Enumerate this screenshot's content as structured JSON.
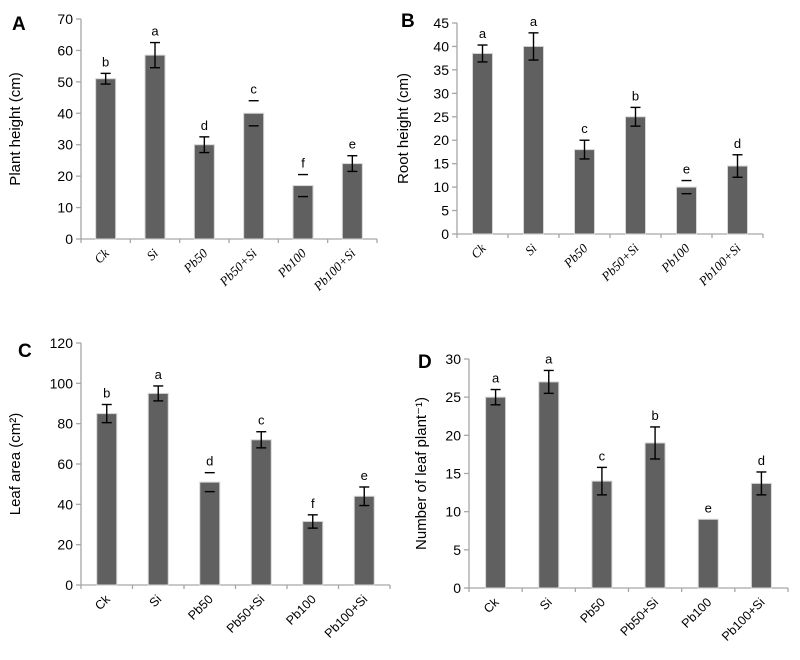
{
  "figure_title": "",
  "colors": {
    "bar_fill": "#606060",
    "bar_border": "#d6d6d6",
    "axis_line": "#a6a6a6",
    "error_bar": "#000000",
    "text": "#000000",
    "background": "#ffffff"
  },
  "chart_data": [
    {
      "type": "bar",
      "panel": "A",
      "title": "",
      "xlabel": "",
      "ylabel": "Plant height (cm)",
      "ylim": [
        0,
        70
      ],
      "ytick_step": 10,
      "grid": false,
      "legend": "none",
      "categories": [
        "Ck",
        "Si",
        "Pb50",
        "Pb50+Si",
        "Pb100",
        "Pb100+Si"
      ],
      "values": [
        51,
        58.5,
        30,
        40,
        17,
        24
      ],
      "errors": [
        1.7,
        4,
        2.5,
        4,
        3.5,
        2.5
      ],
      "sig_letters": [
        "b",
        "a",
        "d",
        "c",
        "f",
        "e"
      ],
      "error_styles": [
        "T",
        "T",
        "T",
        "caps",
        "caps",
        "T"
      ]
    },
    {
      "type": "bar",
      "panel": "B",
      "title": "",
      "xlabel": "",
      "ylabel": "Root height (cm)",
      "ylim": [
        0,
        45
      ],
      "ytick_step": 5,
      "grid": false,
      "legend": "none",
      "categories": [
        "Ck",
        "Si",
        "Pb50",
        "Pb50+Si",
        "Pb100",
        "Pb100+Si"
      ],
      "values": [
        38.5,
        40,
        18,
        25,
        10,
        14.5
      ],
      "errors": [
        1.8,
        2.9,
        2,
        2,
        1.4,
        2.4
      ],
      "sig_letters": [
        "a",
        "a",
        "c",
        "b",
        "e",
        "d"
      ],
      "error_styles": [
        "T",
        "T",
        "T",
        "T",
        "caps",
        "T"
      ]
    },
    {
      "type": "bar",
      "panel": "C",
      "title": "",
      "xlabel": "",
      "ylabel": "Leaf area (cm²)",
      "ylim": [
        0,
        120
      ],
      "ytick_step": 20,
      "grid": false,
      "legend": "none",
      "categories": [
        "Ck",
        "Si",
        "Pb50",
        "Pb50+Si",
        "Pb100",
        "Pb100+Si"
      ],
      "values": [
        85,
        95,
        51,
        72,
        31.5,
        44
      ],
      "errors": [
        4.5,
        3.7,
        4.7,
        4,
        3.3,
        4.6
      ],
      "sig_letters": [
        "b",
        "a",
        "d",
        "c",
        "f",
        "e"
      ],
      "error_styles": [
        "T",
        "T",
        "caps",
        "T",
        "T",
        "T"
      ]
    },
    {
      "type": "bar",
      "panel": "D",
      "title": "",
      "xlabel": "",
      "ylabel": "Number of leaf plant⁻¹)",
      "ylim": [
        0,
        30
      ],
      "ytick_step": 5,
      "grid": false,
      "legend": "none",
      "categories": [
        "Ck",
        "Si",
        "Pb50",
        "Pb50+Si",
        "Pb100",
        "Pb100+Si"
      ],
      "values": [
        25,
        27,
        14,
        19,
        9,
        13.7
      ],
      "errors": [
        1,
        1.5,
        1.8,
        2.1,
        0,
        1.5
      ],
      "sig_letters": [
        "a",
        "a",
        "c",
        "b",
        "e",
        "d"
      ],
      "error_styles": [
        "T",
        "T",
        "T",
        "T",
        "none",
        "T"
      ]
    }
  ]
}
